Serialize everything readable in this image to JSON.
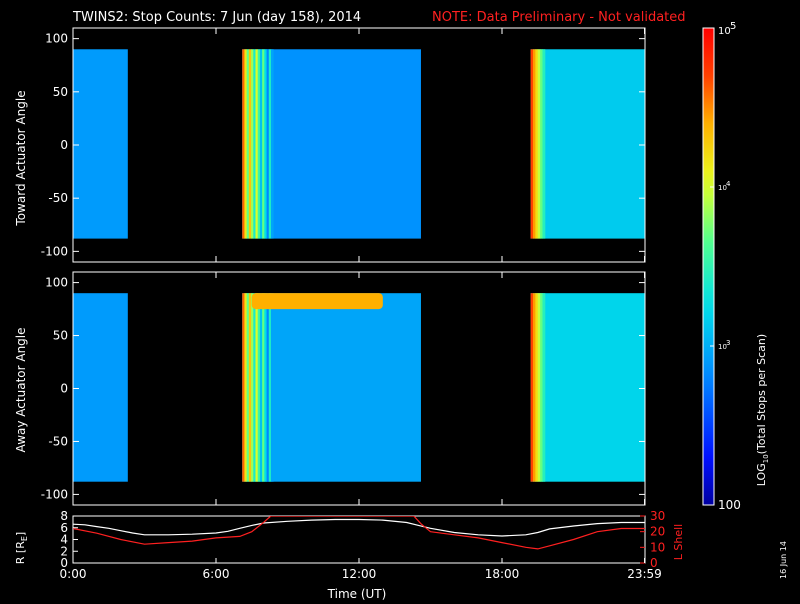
{
  "title": "TWINS2: Stop Counts:  7 Jun (day 158), 2014",
  "note": "NOTE: Data Preliminary - Not validated",
  "side_date": "16 Jun 14",
  "colors": {
    "background": "#000000",
    "axis": "#ffffff",
    "note": "#ff2020",
    "r_line": "#ffffff",
    "l_line": "#ff2020"
  },
  "chart_data": [
    {
      "type": "heatmap",
      "ylabel": "Toward Actuator Angle",
      "yticks": [
        "100",
        "50",
        "0",
        "-50",
        "-100"
      ],
      "ytick_values": [
        100,
        50,
        0,
        -50,
        -100
      ],
      "ylim": [
        -110,
        110
      ],
      "angle_range": [
        -88,
        90
      ],
      "xlim_hours": [
        0,
        24
      ],
      "data_intervals_hours": [
        [
          0.0,
          2.3
        ],
        [
          7.1,
          14.6
        ],
        [
          19.2,
          24.0
        ]
      ],
      "stripe_hours": [
        7.2,
        7.4,
        7.55,
        7.7,
        7.85,
        8.0,
        8.2,
        8.35,
        8.5
      ],
      "log10_counts": {
        "interval_1": 2.9,
        "interval_2_edge": 4.6,
        "interval_2_body": 2.85,
        "interval_3_edge": 4.7,
        "interval_3_body": 3.15
      }
    },
    {
      "type": "heatmap",
      "ylabel": "Away Actuator Angle",
      "yticks": [
        "100",
        "50",
        "0",
        "-50",
        "-100"
      ],
      "ytick_values": [
        100,
        50,
        0,
        -50,
        -100
      ],
      "ylim": [
        -110,
        110
      ],
      "angle_range": [
        -88,
        90
      ],
      "xlim_hours": [
        0,
        24
      ],
      "data_intervals_hours": [
        [
          0.0,
          2.3
        ],
        [
          7.1,
          14.6
        ],
        [
          19.2,
          24.0
        ]
      ],
      "high_band_angle": [
        75,
        90
      ],
      "high_band_hours": [
        7.5,
        13.0
      ],
      "log10_counts": {
        "interval_1": 2.9,
        "interval_2_edge": 4.6,
        "interval_2_body": 2.95,
        "interval_2_band": 4.4,
        "interval_3_edge": 4.7,
        "interval_3_body": 3.2
      }
    },
    {
      "type": "line",
      "xlabel": "Time (UT)",
      "xticks": [
        "0:00",
        "6:00",
        "12:00",
        "18:00",
        "23:59"
      ],
      "xtick_hours": [
        0,
        6,
        12,
        18,
        23.98
      ],
      "ylabel_left": "R [RE]",
      "yticks_left": [
        "8",
        "6",
        "4",
        "2",
        "0"
      ],
      "ytick_values_left": [
        8,
        6,
        4,
        2,
        0
      ],
      "ylim_left": [
        0,
        8
      ],
      "ylabel_right": "L Shell",
      "yticks_right": [
        "30",
        "20",
        "10",
        "0"
      ],
      "ytick_values_right": [
        30,
        20,
        10,
        0
      ],
      "ylim_right": [
        0,
        30
      ],
      "series": [
        {
          "name": "R [RE]",
          "axis": "left",
          "x": [
            0,
            0.5,
            1,
            1.5,
            2,
            2.5,
            3,
            4,
            5,
            6,
            6.5,
            7,
            7.5,
            8,
            9,
            10,
            11,
            12,
            13,
            14,
            14.5,
            15,
            16,
            17,
            18,
            19,
            19.5,
            20,
            21,
            22,
            23,
            24
          ],
          "y": [
            6.6,
            6.5,
            6.2,
            5.9,
            5.5,
            5.1,
            4.8,
            4.8,
            4.9,
            5.1,
            5.4,
            5.9,
            6.4,
            6.8,
            7.1,
            7.3,
            7.4,
            7.4,
            7.3,
            6.9,
            6.4,
            5.9,
            5.2,
            4.8,
            4.6,
            4.8,
            5.2,
            5.8,
            6.3,
            6.7,
            6.9,
            6.9
          ]
        },
        {
          "name": "L Shell",
          "axis": "right",
          "x": [
            0,
            1,
            2,
            3,
            4,
            5,
            6,
            7,
            7.5,
            8,
            8.3,
            14.3,
            14.6,
            15,
            16,
            17,
            18,
            19,
            19.5,
            20,
            21,
            22,
            23,
            24
          ],
          "y": [
            22,
            19,
            15,
            12,
            13,
            14,
            16,
            17,
            20,
            26,
            30,
            30,
            25,
            20,
            18,
            16,
            13,
            10,
            9,
            11,
            15,
            20,
            22,
            22
          ]
        }
      ]
    },
    {
      "type": "heatmap",
      "role": "colorbar",
      "scale": "log",
      "range": [
        100,
        100000
      ],
      "ticks": [
        "100",
        "10",
        "3",
        "10",
        "4",
        "10",
        "5"
      ],
      "tick_values": [
        100,
        1000,
        10000,
        100000
      ],
      "label": "LOG",
      "label_sub": "10",
      "label_rest": "(Total Stops per Scan)"
    }
  ],
  "labels": {
    "top_ylabel": "Toward Actuator Angle",
    "mid_ylabel": "Away Actuator Angle",
    "bottom_ylabel_left_main": "R [R",
    "bottom_ylabel_left_sub": "E",
    "bottom_ylabel_left_end": "]",
    "bottom_ylabel_right": "L Shell",
    "xlabel": "Time (UT)"
  }
}
